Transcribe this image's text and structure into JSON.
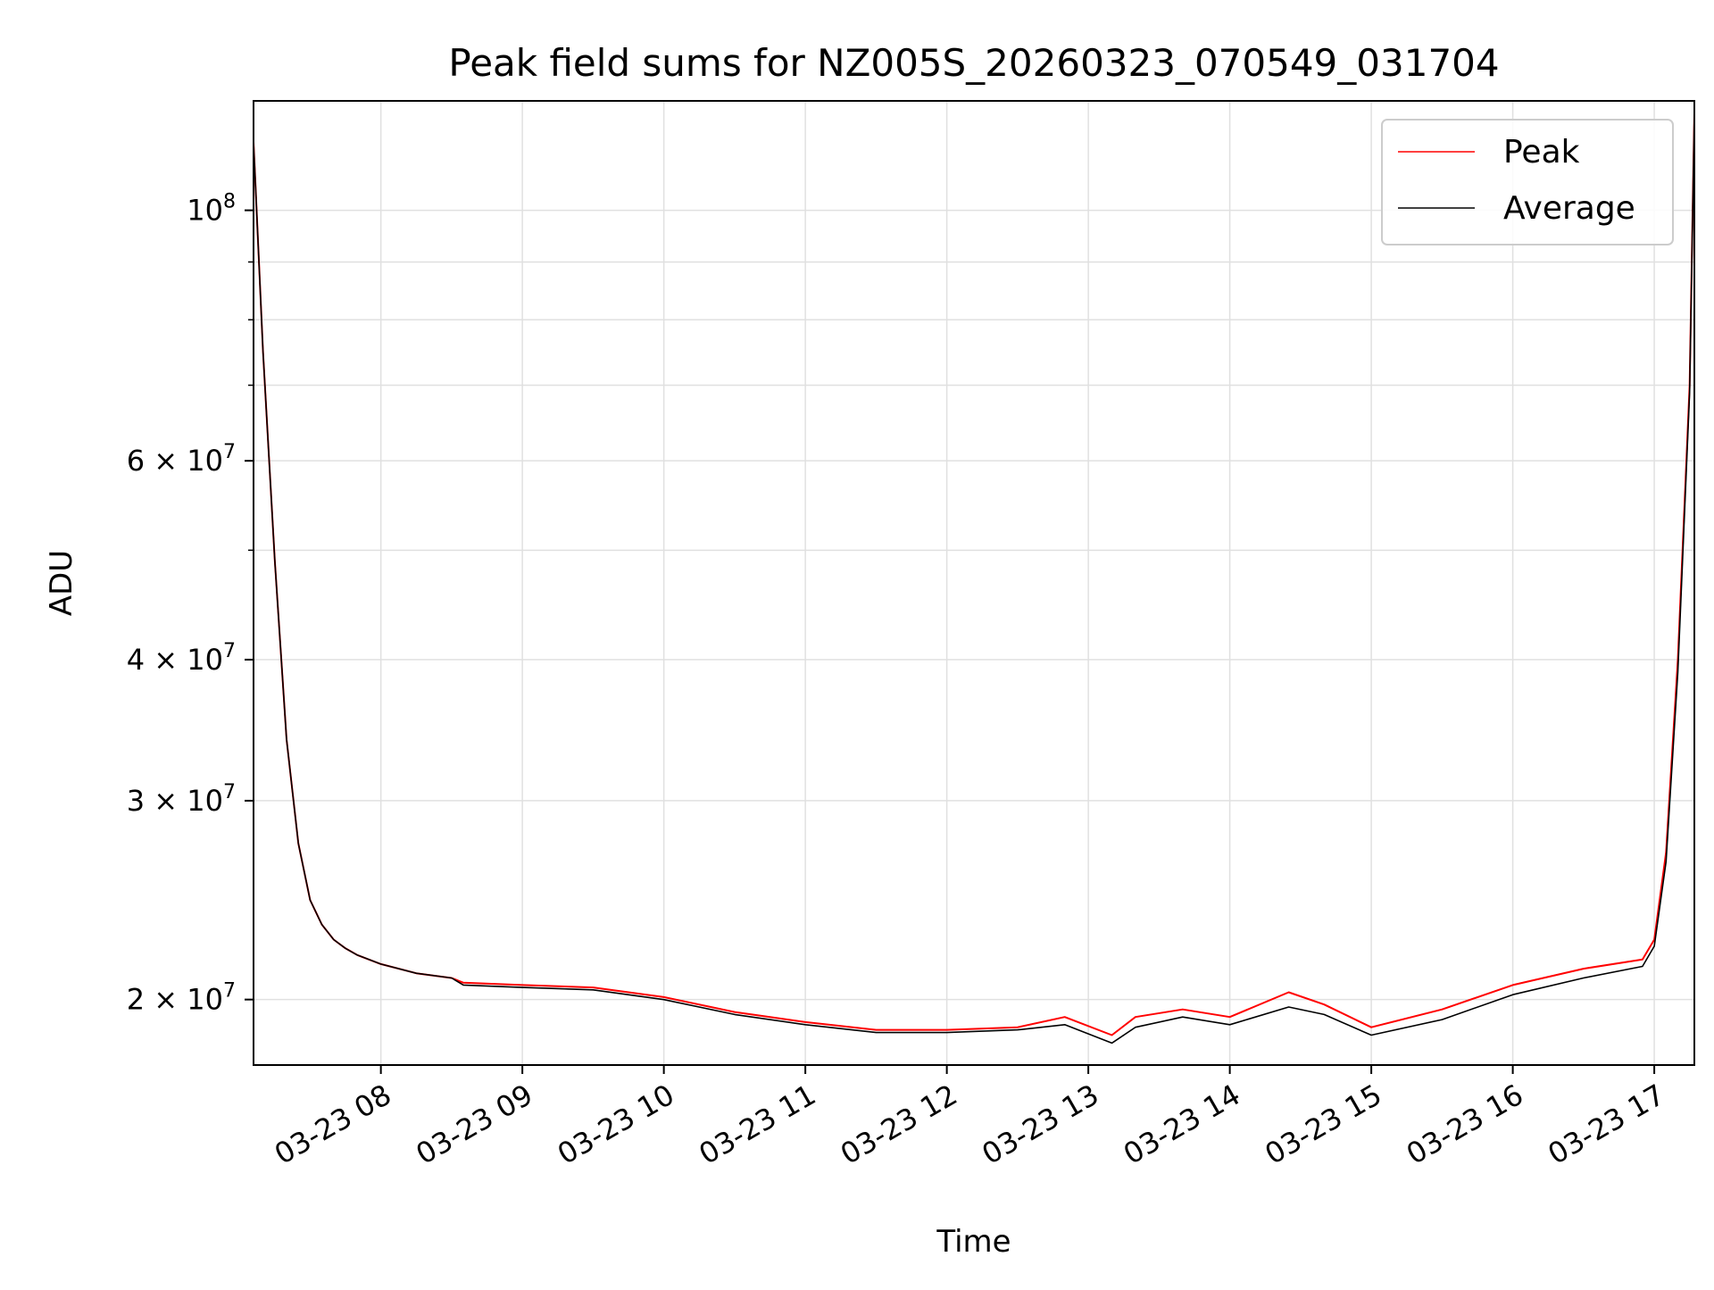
{
  "chart_data": {
    "type": "line",
    "title": "Peak field sums for NZ005S_20260323_070549_031704",
    "xlabel": "Time",
    "ylabel": "ADU",
    "yscale": "log",
    "grid": true,
    "legend_position": "top-right",
    "xlim": [
      "2026-03-23 07:06",
      "2026-03-23 17:17"
    ],
    "ylim": [
      17500000,
      125000000
    ],
    "x_ticks": [
      {
        "value": "2026-03-23 08:00",
        "label": "03-23 08"
      },
      {
        "value": "2026-03-23 09:00",
        "label": "03-23 09"
      },
      {
        "value": "2026-03-23 10:00",
        "label": "03-23 10"
      },
      {
        "value": "2026-03-23 11:00",
        "label": "03-23 11"
      },
      {
        "value": "2026-03-23 12:00",
        "label": "03-23 12"
      },
      {
        "value": "2026-03-23 13:00",
        "label": "03-23 13"
      },
      {
        "value": "2026-03-23 14:00",
        "label": "03-23 14"
      },
      {
        "value": "2026-03-23 15:00",
        "label": "03-23 15"
      },
      {
        "value": "2026-03-23 16:00",
        "label": "03-23 16"
      },
      {
        "value": "2026-03-23 17:00",
        "label": "03-23 17"
      }
    ],
    "y_ticks": [
      {
        "value": 20000000,
        "base": "2 × 10",
        "exp": "7"
      },
      {
        "value": 30000000,
        "base": "3 × 10",
        "exp": "7"
      },
      {
        "value": 40000000,
        "base": "4 × 10",
        "exp": "7"
      },
      {
        "value": 60000000,
        "base": "6 × 10",
        "exp": "7"
      },
      {
        "value": 100000000,
        "base": "10",
        "exp": "8"
      }
    ],
    "y_minor_ticks": [
      50000000,
      70000000,
      80000000,
      90000000
    ],
    "series": [
      {
        "name": "Peak",
        "color": "#ff0000",
        "x": [
          "2026-03-23 07:06",
          "2026-03-23 07:10",
          "2026-03-23 07:15",
          "2026-03-23 07:20",
          "2026-03-23 07:25",
          "2026-03-23 07:30",
          "2026-03-23 07:35",
          "2026-03-23 07:40",
          "2026-03-23 07:45",
          "2026-03-23 07:50",
          "2026-03-23 08:00",
          "2026-03-23 08:15",
          "2026-03-23 08:30",
          "2026-03-23 08:35",
          "2026-03-23 09:00",
          "2026-03-23 09:30",
          "2026-03-23 10:00",
          "2026-03-23 10:30",
          "2026-03-23 11:00",
          "2026-03-23 11:30",
          "2026-03-23 12:00",
          "2026-03-23 12:30",
          "2026-03-23 12:50",
          "2026-03-23 13:10",
          "2026-03-23 13:20",
          "2026-03-23 13:40",
          "2026-03-23 14:00",
          "2026-03-23 14:25",
          "2026-03-23 14:40",
          "2026-03-23 15:00",
          "2026-03-23 15:30",
          "2026-03-23 16:00",
          "2026-03-23 16:30",
          "2026-03-23 16:55",
          "2026-03-23 17:00",
          "2026-03-23 17:05",
          "2026-03-23 17:10",
          "2026-03-23 17:15",
          "2026-03-23 17:17"
        ],
        "y": [
          115000000,
          75000000,
          49000000,
          34000000,
          27500000,
          24500000,
          23300000,
          22600000,
          22200000,
          21900000,
          21500000,
          21100000,
          20900000,
          20700000,
          20600000,
          20500000,
          20100000,
          19500000,
          19100000,
          18800000,
          18800000,
          18900000,
          19300000,
          18600000,
          19300000,
          19600000,
          19300000,
          20300000,
          19800000,
          18900000,
          19600000,
          20600000,
          21300000,
          21700000,
          22600000,
          27000000,
          40000000,
          70000000,
          122000000
        ]
      },
      {
        "name": "Average",
        "color": "#000000",
        "x": [
          "2026-03-23 07:06",
          "2026-03-23 07:10",
          "2026-03-23 07:15",
          "2026-03-23 07:20",
          "2026-03-23 07:25",
          "2026-03-23 07:30",
          "2026-03-23 07:35",
          "2026-03-23 07:40",
          "2026-03-23 07:45",
          "2026-03-23 07:50",
          "2026-03-23 08:00",
          "2026-03-23 08:15",
          "2026-03-23 08:30",
          "2026-03-23 08:35",
          "2026-03-23 09:00",
          "2026-03-23 09:30",
          "2026-03-23 10:00",
          "2026-03-23 10:30",
          "2026-03-23 11:00",
          "2026-03-23 11:30",
          "2026-03-23 12:00",
          "2026-03-23 12:30",
          "2026-03-23 12:50",
          "2026-03-23 13:10",
          "2026-03-23 13:20",
          "2026-03-23 13:40",
          "2026-03-23 14:00",
          "2026-03-23 14:25",
          "2026-03-23 14:40",
          "2026-03-23 15:00",
          "2026-03-23 15:30",
          "2026-03-23 16:00",
          "2026-03-23 16:30",
          "2026-03-23 16:55",
          "2026-03-23 17:00",
          "2026-03-23 17:05",
          "2026-03-23 17:10",
          "2026-03-23 17:15",
          "2026-03-23 17:17"
        ],
        "y": [
          115000000,
          75000000,
          49000000,
          34000000,
          27500000,
          24500000,
          23300000,
          22600000,
          22200000,
          21900000,
          21500000,
          21100000,
          20900000,
          20600000,
          20500000,
          20400000,
          20000000,
          19400000,
          19000000,
          18700000,
          18700000,
          18800000,
          19000000,
          18300000,
          18900000,
          19300000,
          19000000,
          19700000,
          19400000,
          18600000,
          19200000,
          20200000,
          20900000,
          21400000,
          22300000,
          26500000,
          39000000,
          69000000,
          122000000
        ]
      }
    ]
  }
}
